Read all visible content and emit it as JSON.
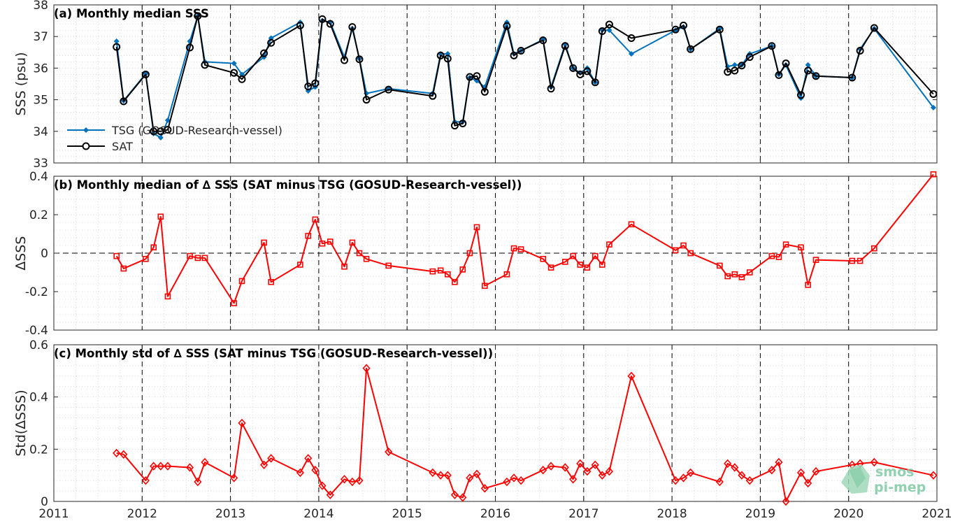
{
  "chart_data": [
    {
      "type": "line",
      "title": "(a) Monthly median SSS",
      "ylabel": "SSS (psu)",
      "xlim": [
        2011,
        2021
      ],
      "ylim": [
        33,
        38
      ],
      "yticks": [
        "33",
        "34",
        "35",
        "36",
        "37",
        "38"
      ],
      "grid": "on",
      "legend_position": "left",
      "series": [
        {
          "name": "TSG (GOSUD-Research-vessel)",
          "color": "#0072bd",
          "marker": "dot",
          "x": [
            2011.71,
            2011.79,
            2012.04,
            2012.13,
            2012.21,
            2012.29,
            2012.54,
            2012.63,
            2012.71,
            2013.04,
            2013.13,
            2013.38,
            2013.46,
            2013.79,
            2013.88,
            2013.96,
            2014.04,
            2014.13,
            2014.29,
            2014.38,
            2014.46,
            2014.54,
            2014.79,
            2015.29,
            2015.38,
            2015.46,
            2015.54,
            2015.63,
            2015.71,
            2015.79,
            2015.88,
            2016.13,
            2016.21,
            2016.29,
            2016.54,
            2016.63,
            2016.79,
            2016.88,
            2016.96,
            2017.04,
            2017.13,
            2017.21,
            2017.29,
            2017.54,
            2018.04,
            2018.13,
            2018.21,
            2018.54,
            2018.63,
            2018.71,
            2018.79,
            2018.88,
            2019.13,
            2019.21,
            2019.29,
            2019.46,
            2019.54,
            2019.63,
            2020.04,
            2020.13,
            2020.29,
            2020.96
          ],
          "values": [
            36.85,
            34.97,
            35.82,
            33.93,
            33.8,
            34.35,
            36.85,
            37.65,
            36.2,
            36.15,
            35.8,
            36.35,
            36.95,
            37.45,
            35.28,
            35.4,
            37.5,
            37.45,
            36.35,
            37.25,
            36.3,
            35.2,
            35.35,
            35.2,
            36.45,
            36.45,
            34.3,
            34.3,
            35.7,
            35.6,
            35.4,
            37.45,
            36.45,
            36.55,
            36.9,
            35.4,
            36.75,
            36.0,
            35.85,
            36.0,
            35.55,
            37.2,
            37.2,
            36.45,
            37.2,
            37.3,
            36.6,
            37.25,
            36.05,
            36.1,
            36.1,
            36.45,
            36.7,
            35.8,
            36.1,
            35.05,
            36.1,
            35.75,
            35.7,
            36.6,
            37.25,
            34.75
          ]
        },
        {
          "name": "SAT",
          "color": "#000000",
          "marker": "circle",
          "x": [
            2011.71,
            2011.79,
            2012.04,
            2012.13,
            2012.21,
            2012.29,
            2012.54,
            2012.63,
            2012.71,
            2013.04,
            2013.13,
            2013.38,
            2013.46,
            2013.79,
            2013.88,
            2013.96,
            2014.04,
            2014.13,
            2014.29,
            2014.38,
            2014.46,
            2014.54,
            2014.79,
            2015.29,
            2015.38,
            2015.46,
            2015.54,
            2015.63,
            2015.71,
            2015.79,
            2015.88,
            2016.13,
            2016.21,
            2016.29,
            2016.54,
            2016.63,
            2016.79,
            2016.88,
            2016.96,
            2017.04,
            2017.13,
            2017.21,
            2017.29,
            2017.54,
            2018.04,
            2018.13,
            2018.21,
            2018.54,
            2018.63,
            2018.71,
            2018.79,
            2018.88,
            2019.13,
            2019.21,
            2019.29,
            2019.46,
            2019.54,
            2019.63,
            2020.04,
            2020.13,
            2020.29,
            2020.96
          ],
          "values": [
            36.67,
            34.95,
            35.8,
            34.0,
            34.0,
            34.05,
            36.65,
            37.65,
            36.1,
            35.85,
            35.65,
            36.47,
            36.8,
            37.35,
            35.42,
            35.52,
            37.55,
            37.4,
            36.25,
            37.3,
            36.28,
            35.0,
            35.32,
            35.12,
            36.4,
            36.3,
            34.18,
            34.25,
            35.72,
            35.75,
            35.25,
            37.33,
            36.4,
            36.55,
            36.88,
            35.35,
            36.7,
            36.0,
            35.8,
            35.9,
            35.55,
            37.17,
            37.38,
            36.95,
            37.22,
            37.35,
            36.6,
            37.22,
            35.88,
            35.92,
            36.08,
            36.35,
            36.7,
            35.78,
            36.15,
            35.15,
            35.92,
            35.75,
            35.7,
            36.55,
            37.27,
            35.18
          ]
        }
      ]
    },
    {
      "type": "line",
      "title": "(b) Monthly median of ∆ SSS (SAT minus TSG (GOSUD-Research-vessel))",
      "ylabel": "∆SSS",
      "xlim": [
        2011,
        2021
      ],
      "ylim": [
        -0.4,
        0.4
      ],
      "yticks": [
        "-0.4",
        "-0.2",
        "0",
        "0.2",
        "0.4"
      ],
      "zero_line": "dashed",
      "grid": "on",
      "series": [
        {
          "color": "#ff0000",
          "marker": "square",
          "x": [
            2011.71,
            2011.79,
            2012.04,
            2012.13,
            2012.21,
            2012.29,
            2012.54,
            2012.63,
            2012.71,
            2013.04,
            2013.13,
            2013.38,
            2013.46,
            2013.79,
            2013.88,
            2013.96,
            2014.04,
            2014.13,
            2014.29,
            2014.38,
            2014.46,
            2014.54,
            2014.79,
            2015.29,
            2015.38,
            2015.46,
            2015.54,
            2015.63,
            2015.71,
            2015.79,
            2015.88,
            2016.13,
            2016.21,
            2016.29,
            2016.54,
            2016.63,
            2016.79,
            2016.88,
            2016.96,
            2017.04,
            2017.13,
            2017.21,
            2017.29,
            2017.54,
            2018.04,
            2018.13,
            2018.21,
            2018.54,
            2018.63,
            2018.71,
            2018.79,
            2018.88,
            2019.13,
            2019.21,
            2019.29,
            2019.46,
            2019.54,
            2019.63,
            2020.04,
            2020.13,
            2020.29,
            2020.96
          ],
          "values": [
            -0.015,
            -0.08,
            -0.03,
            0.03,
            0.19,
            -0.225,
            -0.015,
            -0.025,
            -0.025,
            -0.26,
            -0.145,
            0.055,
            -0.15,
            -0.06,
            0.09,
            0.175,
            0.05,
            0.06,
            -0.07,
            0.055,
            0.0,
            -0.03,
            -0.065,
            -0.095,
            -0.09,
            -0.11,
            -0.15,
            -0.085,
            0.0,
            0.135,
            -0.17,
            -0.11,
            0.025,
            0.02,
            -0.03,
            -0.075,
            -0.045,
            -0.015,
            -0.06,
            -0.075,
            -0.015,
            -0.06,
            0.045,
            0.15,
            0.015,
            0.04,
            0.0,
            -0.065,
            -0.12,
            -0.11,
            -0.125,
            -0.1,
            -0.015,
            -0.02,
            0.045,
            0.03,
            -0.165,
            -0.035,
            -0.04,
            -0.04,
            0.025,
            0.41
          ]
        }
      ]
    },
    {
      "type": "line",
      "title": "(c) Monthly std of ∆ SSS (SAT minus TSG (GOSUD-Research-vessel))",
      "ylabel": "Std(∆SSS)",
      "xlabel": "",
      "xlim": [
        2011,
        2021
      ],
      "xticks": [
        "2011",
        "2012",
        "2013",
        "2014",
        "2015",
        "2016",
        "2017",
        "2018",
        "2019",
        "2020",
        "2021"
      ],
      "ylim": [
        0,
        0.6
      ],
      "yticks": [
        "0",
        "0.2",
        "0.4",
        "0.6"
      ],
      "grid": "on",
      "series": [
        {
          "color": "#ff0000",
          "marker": "diamond",
          "x": [
            2011.71,
            2011.79,
            2012.04,
            2012.13,
            2012.21,
            2012.29,
            2012.54,
            2012.63,
            2012.71,
            2013.04,
            2013.13,
            2013.38,
            2013.46,
            2013.79,
            2013.88,
            2013.96,
            2014.04,
            2014.13,
            2014.29,
            2014.38,
            2014.46,
            2014.54,
            2014.79,
            2015.29,
            2015.38,
            2015.46,
            2015.54,
            2015.63,
            2015.71,
            2015.79,
            2015.88,
            2016.13,
            2016.21,
            2016.29,
            2016.54,
            2016.63,
            2016.79,
            2016.88,
            2016.96,
            2017.04,
            2017.13,
            2017.21,
            2017.29,
            2017.54,
            2018.04,
            2018.13,
            2018.21,
            2018.54,
            2018.63,
            2018.71,
            2018.79,
            2018.88,
            2019.13,
            2019.21,
            2019.29,
            2019.46,
            2019.54,
            2019.63,
            2020.04,
            2020.13,
            2020.29,
            2020.96
          ],
          "values": [
            0.185,
            0.18,
            0.08,
            0.135,
            0.135,
            0.135,
            0.13,
            0.075,
            0.15,
            0.09,
            0.3,
            0.14,
            0.165,
            0.11,
            0.165,
            0.12,
            0.06,
            0.025,
            0.085,
            0.075,
            0.08,
            0.51,
            0.19,
            0.11,
            0.1,
            0.1,
            0.025,
            0.015,
            0.09,
            0.105,
            0.05,
            0.075,
            0.09,
            0.08,
            0.12,
            0.135,
            0.13,
            0.085,
            0.145,
            0.115,
            0.14,
            0.1,
            0.115,
            0.48,
            0.08,
            0.09,
            0.11,
            0.075,
            0.145,
            0.13,
            0.1,
            0.08,
            0.12,
            0.15,
            0.0,
            0.11,
            0.07,
            0.115,
            0.14,
            0.145,
            0.15,
            0.1
          ]
        }
      ]
    }
  ],
  "watermark": {
    "line1": "smos",
    "line2": "pi-mep"
  }
}
